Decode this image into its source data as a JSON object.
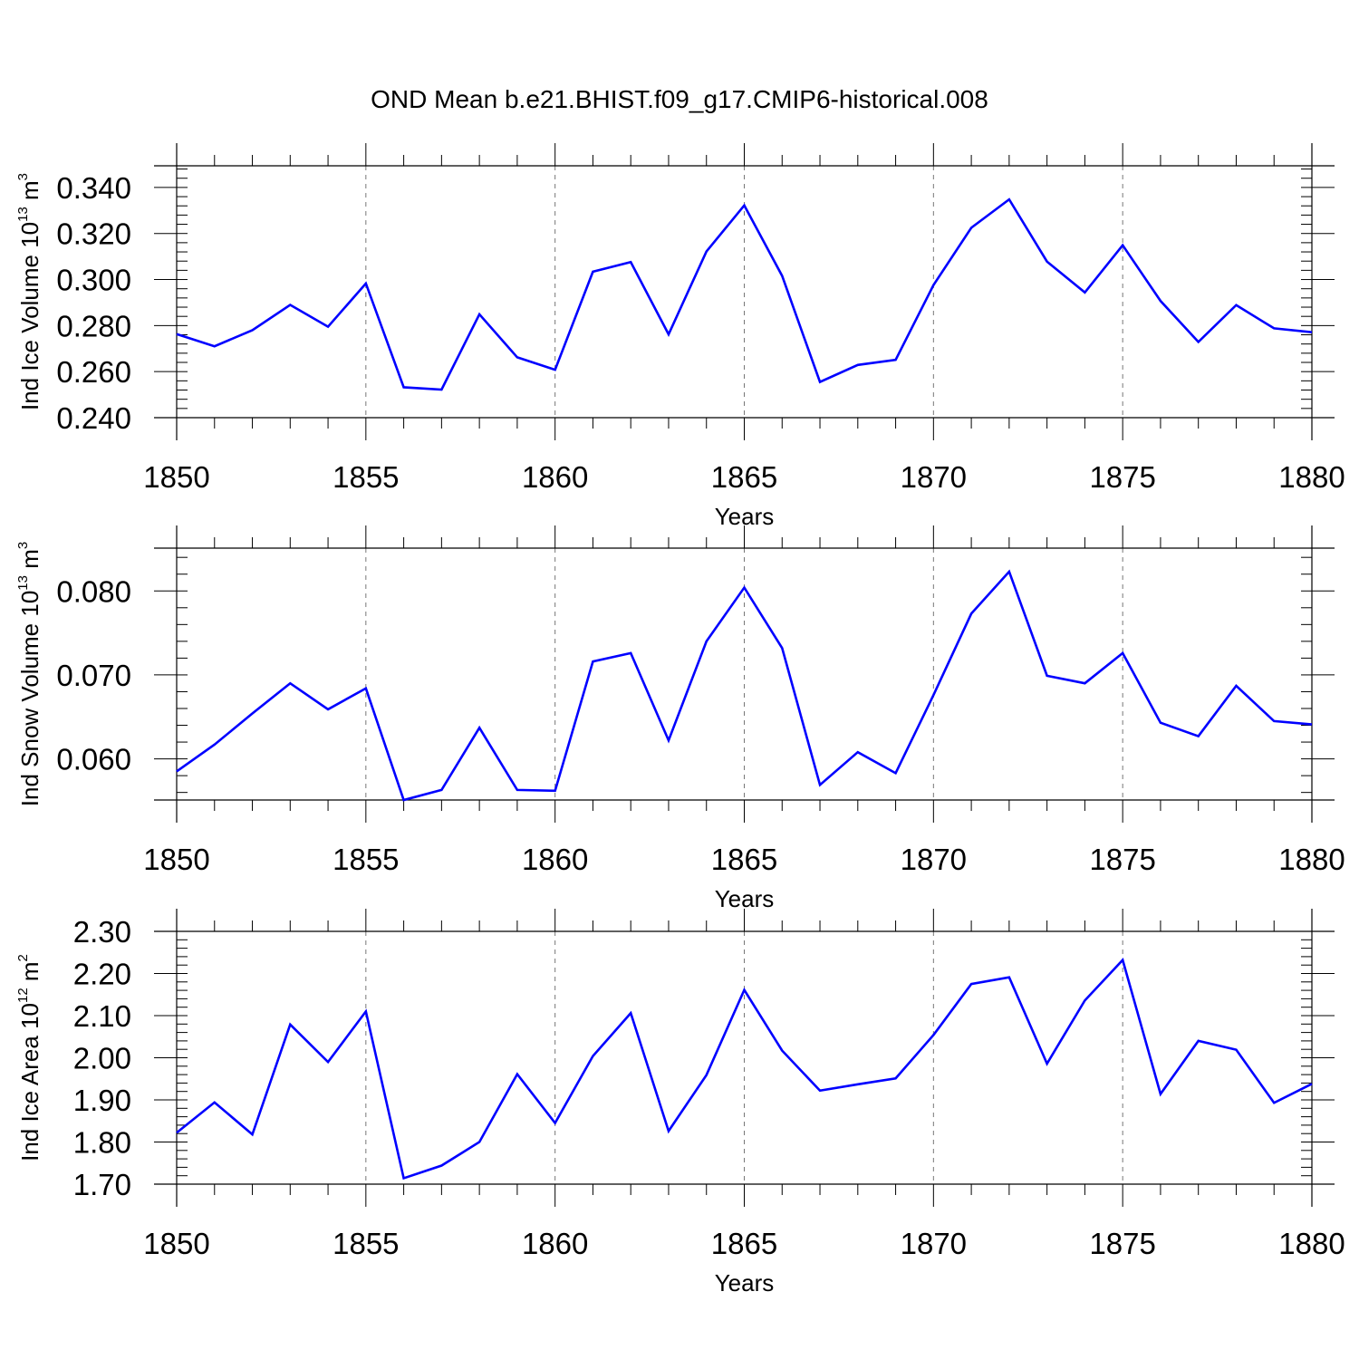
{
  "figure_title": "OND Mean b.e21.BHIST.f09_g17.CMIP6-historical.008",
  "chart_data": [
    {
      "type": "line",
      "id": "ice-volume",
      "title": "OND Mean b.e21.BHIST.f09_g17.CMIP6-historical.008",
      "ylabel": "Ind Ice Volume 10",
      "ylabel_exp": "13",
      "ylabel_unit": " m",
      "ylabel_unit_exp": "3",
      "xlabel": "Years",
      "xlim": [
        1850,
        1880
      ],
      "ylim": [
        0.24,
        0.3494
      ],
      "yticks": [
        0.24,
        0.26,
        0.28,
        0.3,
        0.32,
        0.34
      ],
      "ytick_labels": [
        "0.240",
        "0.260",
        "0.280",
        "0.300",
        "0.320",
        "0.340"
      ],
      "xticks": [
        1850,
        1855,
        1860,
        1865,
        1870,
        1875,
        1880
      ],
      "xtick_labels": [
        "1850",
        "1855",
        "1860",
        "1865",
        "1870",
        "1875",
        "1880"
      ],
      "x": [
        1850,
        1851,
        1852,
        1853,
        1854,
        1855,
        1856,
        1857,
        1858,
        1859,
        1860,
        1861,
        1862,
        1863,
        1864,
        1865,
        1866,
        1867,
        1868,
        1869,
        1870,
        1871,
        1872,
        1873,
        1874,
        1875,
        1876,
        1877,
        1878,
        1879,
        1880
      ],
      "series": [
        {
          "name": "Ind Ice Volume",
          "color": "#0000ff",
          "values": [
            0.2763,
            0.271,
            0.278,
            0.289,
            0.2795,
            0.2983,
            0.2532,
            0.2522,
            0.2849,
            0.2662,
            0.2608,
            0.3034,
            0.3076,
            0.2762,
            0.3122,
            0.3322,
            0.3016,
            0.2555,
            0.2629,
            0.2651,
            0.2976,
            0.3225,
            0.3348,
            0.3078,
            0.2944,
            0.3149,
            0.2907,
            0.2729,
            0.2889,
            0.2788,
            0.2771
          ]
        }
      ]
    },
    {
      "type": "line",
      "id": "snow-volume",
      "title": "",
      "ylabel": "Ind Snow Volume 10",
      "ylabel_exp": "13",
      "ylabel_unit": " m",
      "ylabel_unit_exp": "3",
      "xlabel": "Years",
      "xlim": [
        1850,
        1880
      ],
      "ylim": [
        0.0551,
        0.0851
      ],
      "yticks": [
        0.06,
        0.07,
        0.08
      ],
      "ytick_labels": [
        "0.060",
        "0.070",
        "0.080"
      ],
      "xticks": [
        1850,
        1855,
        1860,
        1865,
        1870,
        1875,
        1880
      ],
      "xtick_labels": [
        "1850",
        "1855",
        "1860",
        "1865",
        "1870",
        "1875",
        "1880"
      ],
      "x": [
        1850,
        1851,
        1852,
        1853,
        1854,
        1855,
        1856,
        1857,
        1858,
        1859,
        1860,
        1861,
        1862,
        1863,
        1864,
        1865,
        1866,
        1867,
        1868,
        1869,
        1870,
        1871,
        1872,
        1873,
        1874,
        1875,
        1876,
        1877,
        1878,
        1879,
        1880
      ],
      "series": [
        {
          "name": "Ind Snow Volume",
          "color": "#0000ff",
          "values": [
            0.0585,
            0.0617,
            0.0654,
            0.069,
            0.0659,
            0.0684,
            0.0551,
            0.0563,
            0.0637,
            0.0563,
            0.0562,
            0.0716,
            0.0726,
            0.0622,
            0.074,
            0.0804,
            0.0732,
            0.0569,
            0.0608,
            0.0583,
            0.0676,
            0.0773,
            0.0823,
            0.0699,
            0.069,
            0.0726,
            0.0643,
            0.0627,
            0.0687,
            0.0645,
            0.0641
          ]
        }
      ]
    },
    {
      "type": "line",
      "id": "ice-area",
      "title": "",
      "ylabel": "Ind Ice Area 10",
      "ylabel_exp": "12",
      "ylabel_unit": " m",
      "ylabel_unit_exp": "2",
      "xlabel": "Years",
      "xlim": [
        1850,
        1880
      ],
      "ylim": [
        1.7,
        2.3
      ],
      "yticks": [
        1.7,
        1.8,
        1.9,
        2.0,
        2.1,
        2.2,
        2.3
      ],
      "ytick_labels": [
        "1.70",
        "1.80",
        "1.90",
        "2.00",
        "2.10",
        "2.20",
        "2.30"
      ],
      "xticks": [
        1850,
        1855,
        1860,
        1865,
        1870,
        1875,
        1880
      ],
      "xtick_labels": [
        "1850",
        "1855",
        "1860",
        "1865",
        "1870",
        "1875",
        "1880"
      ],
      "x": [
        1850,
        1851,
        1852,
        1853,
        1854,
        1855,
        1856,
        1857,
        1858,
        1859,
        1860,
        1861,
        1862,
        1863,
        1864,
        1865,
        1866,
        1867,
        1868,
        1869,
        1870,
        1871,
        1872,
        1873,
        1874,
        1875,
        1876,
        1877,
        1878,
        1879,
        1880
      ],
      "series": [
        {
          "name": "Ind Ice Area",
          "color": "#0000ff",
          "values": [
            1.822,
            1.894,
            1.818,
            2.079,
            1.99,
            2.11,
            1.714,
            1.744,
            1.8,
            1.961,
            1.845,
            2.004,
            2.106,
            1.826,
            1.959,
            2.161,
            2.017,
            1.922,
            1.937,
            1.951,
            2.054,
            2.175,
            2.191,
            1.986,
            2.136,
            2.232,
            1.914,
            2.04,
            2.019,
            1.893,
            1.938
          ]
        }
      ]
    }
  ]
}
